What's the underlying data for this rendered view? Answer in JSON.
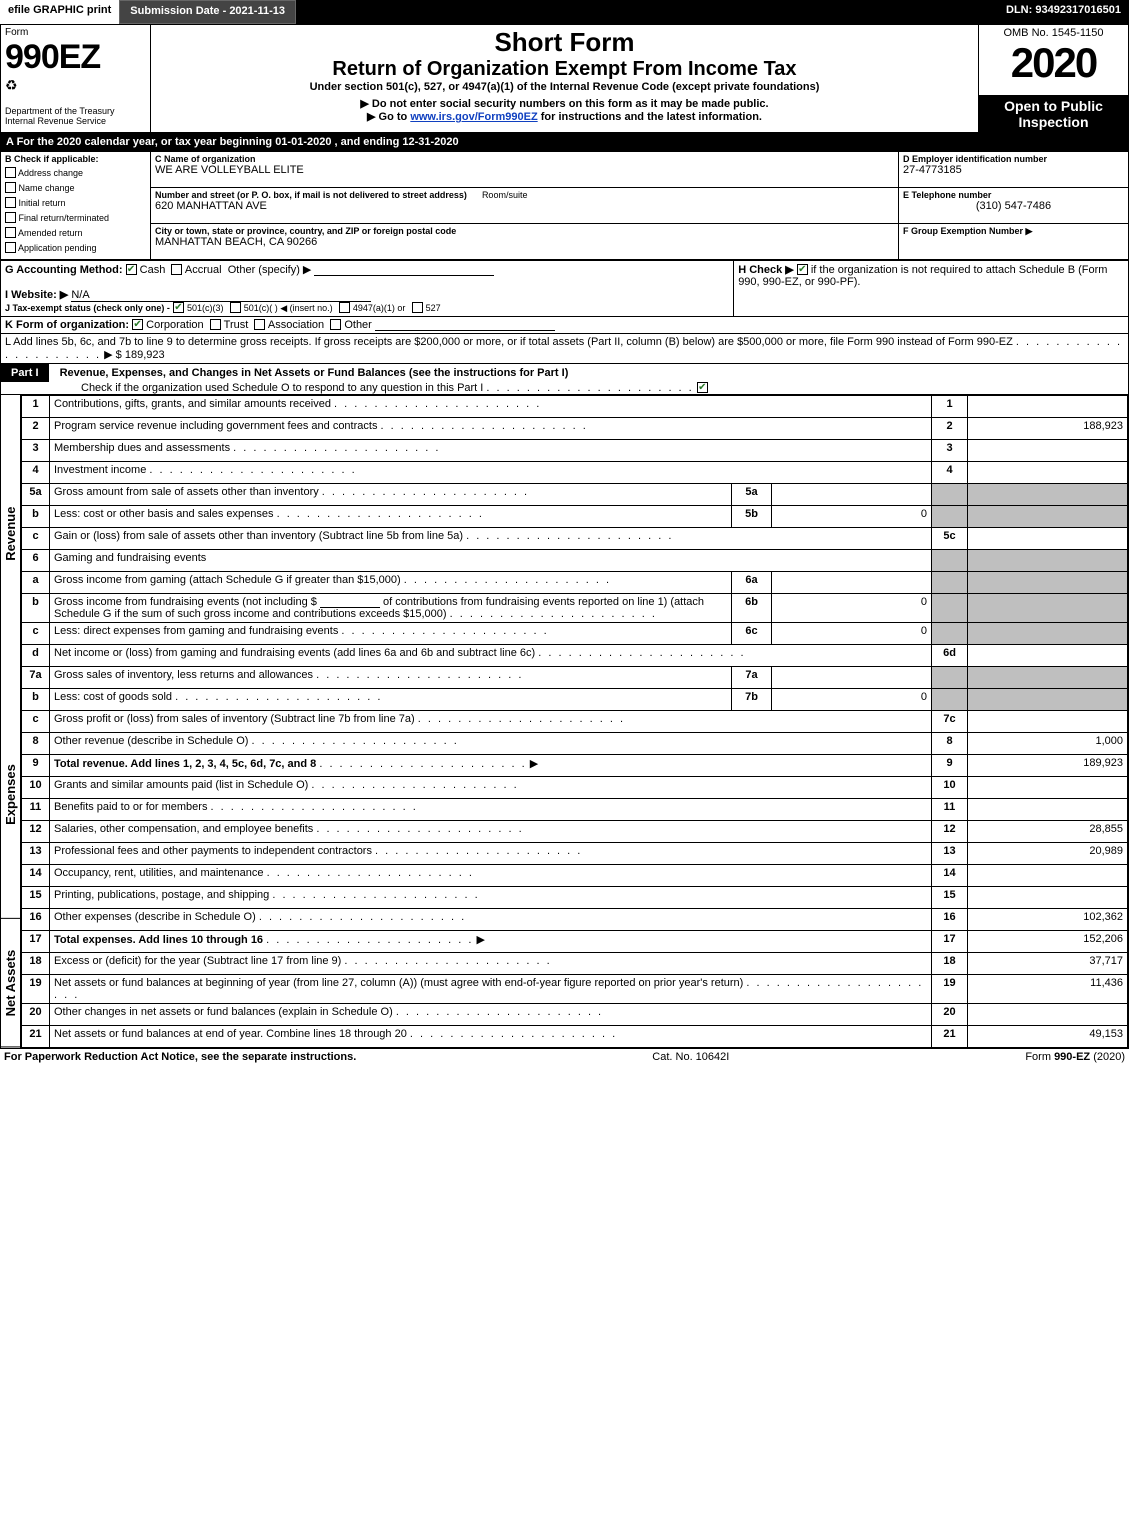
{
  "topbar": {
    "efile": "efile GRAPHIC print",
    "submission": "Submission Date - 2021-11-13",
    "dln": "DLN: 93492317016501"
  },
  "header": {
    "form_word": "Form",
    "form_number": "990EZ",
    "dept": "Department of the Treasury",
    "irs": "Internal Revenue Service",
    "short_form": "Short Form",
    "main_title": "Return of Organization Exempt From Income Tax",
    "subtitle": "Under section 501(c), 527, or 4947(a)(1) of the Internal Revenue Code (except private foundations)",
    "warn_ssn": "▶ Do not enter social security numbers on this form as it may be made public.",
    "goto": "▶ Go to www.irs.gov/Form990EZ for instructions and the latest information.",
    "goto_link": "www.irs.gov/Form990EZ",
    "omb": "OMB No. 1545-1150",
    "year": "2020",
    "open_public": "Open to Public Inspection"
  },
  "period": {
    "line": "A For the 2020 calendar year, or tax year beginning 01-01-2020 , and ending 12-31-2020"
  },
  "boxB": {
    "label": "B Check if applicable:",
    "opts": [
      {
        "label": "Address change",
        "checked": false
      },
      {
        "label": "Name change",
        "checked": false
      },
      {
        "label": "Initial return",
        "checked": false
      },
      {
        "label": "Final return/terminated",
        "checked": false
      },
      {
        "label": "Amended return",
        "checked": false
      },
      {
        "label": "Application pending",
        "checked": false
      }
    ]
  },
  "boxC": {
    "name_label": "C Name of organization",
    "name": "WE ARE VOLLEYBALL ELITE",
    "street_label": "Number and street (or P. O. box, if mail is not delivered to street address)",
    "room_label": "Room/suite",
    "street": "620 MANHATTAN AVE",
    "city_label": "City or town, state or province, country, and ZIP or foreign postal code",
    "city": "MANHATTAN BEACH, CA  90266"
  },
  "boxD": {
    "label": "D Employer identification number",
    "value": "27-4773185"
  },
  "boxE": {
    "label": "E Telephone number",
    "value": "(310) 547-7486"
  },
  "boxF": {
    "label": "F Group Exemption Number ▶",
    "value": ""
  },
  "boxG": {
    "label": "G Accounting Method:",
    "cash": "Cash",
    "cash_checked": true,
    "accrual": "Accrual",
    "accrual_checked": false,
    "other": "Other (specify) ▶"
  },
  "boxH": {
    "label": "H Check ▶",
    "text": "if the organization is not required to attach Schedule B (Form 990, 990-EZ, or 990-PF).",
    "checked": true
  },
  "boxI": {
    "label": "I Website: ▶",
    "value": "N/A"
  },
  "boxJ": {
    "label": "J Tax-exempt status (check only one) -",
    "opt1": "501(c)(3)",
    "opt1_checked": true,
    "opt2": "501(c)(  ) ◀ (insert no.)",
    "opt3": "4947(a)(1) or",
    "opt4": "527"
  },
  "boxK": {
    "label": "K Form of organization:",
    "corp": "Corporation",
    "corp_checked": true,
    "trust": "Trust",
    "assoc": "Association",
    "other": "Other"
  },
  "boxL": {
    "text": "L Add lines 5b, 6c, and 7b to line 9 to determine gross receipts. If gross receipts are $200,000 or more, or if total assets (Part II, column (B) below) are $500,000 or more, file Form 990 instead of Form 990-EZ",
    "amount_prefix": "▶ $",
    "amount": "189,923"
  },
  "part1": {
    "part_label": "Part I",
    "title": "Revenue, Expenses, and Changes in Net Assets or Fund Balances (see the instructions for Part I)",
    "check_line": "Check if the organization used Schedule O to respond to any question in this Part I",
    "check_checked": true,
    "vert_rev": "Revenue",
    "vert_exp": "Expenses",
    "vert_net": "Net Assets"
  },
  "lines": {
    "l1": {
      "n": "1",
      "d": "Contributions, gifts, grants, and similar amounts received",
      "ln": "1",
      "amt": ""
    },
    "l2": {
      "n": "2",
      "d": "Program service revenue including government fees and contracts",
      "ln": "2",
      "amt": "188,923"
    },
    "l3": {
      "n": "3",
      "d": "Membership dues and assessments",
      "ln": "3",
      "amt": ""
    },
    "l4": {
      "n": "4",
      "d": "Investment income",
      "ln": "4",
      "amt": ""
    },
    "l5a": {
      "n": "5a",
      "d": "Gross amount from sale of assets other than inventory",
      "sub": "5a",
      "subamt": ""
    },
    "l5b": {
      "n": "b",
      "d": "Less: cost or other basis and sales expenses",
      "sub": "5b",
      "subamt": "0"
    },
    "l5c": {
      "n": "c",
      "d": "Gain or (loss) from sale of assets other than inventory (Subtract line 5b from line 5a)",
      "ln": "5c",
      "amt": ""
    },
    "l6": {
      "n": "6",
      "d": "Gaming and fundraising events"
    },
    "l6a": {
      "n": "a",
      "d": "Gross income from gaming (attach Schedule G if greater than $15,000)",
      "sub": "6a",
      "subamt": ""
    },
    "l6b_pre": "Gross income from fundraising events (not including $",
    "l6b_mid": "of contributions from fundraising events reported on line 1) (attach Schedule G if the sum of such gross income and contributions exceeds $15,000)",
    "l6b": {
      "n": "b",
      "sub": "6b",
      "subamt": "0"
    },
    "l6c": {
      "n": "c",
      "d": "Less: direct expenses from gaming and fundraising events",
      "sub": "6c",
      "subamt": "0"
    },
    "l6d": {
      "n": "d",
      "d": "Net income or (loss) from gaming and fundraising events (add lines 6a and 6b and subtract line 6c)",
      "ln": "6d",
      "amt": ""
    },
    "l7a": {
      "n": "7a",
      "d": "Gross sales of inventory, less returns and allowances",
      "sub": "7a",
      "subamt": ""
    },
    "l7b": {
      "n": "b",
      "d": "Less: cost of goods sold",
      "sub": "7b",
      "subamt": "0"
    },
    "l7c": {
      "n": "c",
      "d": "Gross profit or (loss) from sales of inventory (Subtract line 7b from line 7a)",
      "ln": "7c",
      "amt": ""
    },
    "l8": {
      "n": "8",
      "d": "Other revenue (describe in Schedule O)",
      "ln": "8",
      "amt": "1,000"
    },
    "l9": {
      "n": "9",
      "d": "Total revenue. Add lines 1, 2, 3, 4, 5c, 6d, 7c, and 8",
      "arrow": "▶",
      "ln": "9",
      "amt": "189,923"
    },
    "l10": {
      "n": "10",
      "d": "Grants and similar amounts paid (list in Schedule O)",
      "ln": "10",
      "amt": ""
    },
    "l11": {
      "n": "11",
      "d": "Benefits paid to or for members",
      "ln": "11",
      "amt": ""
    },
    "l12": {
      "n": "12",
      "d": "Salaries, other compensation, and employee benefits",
      "ln": "12",
      "amt": "28,855"
    },
    "l13": {
      "n": "13",
      "d": "Professional fees and other payments to independent contractors",
      "ln": "13",
      "amt": "20,989"
    },
    "l14": {
      "n": "14",
      "d": "Occupancy, rent, utilities, and maintenance",
      "ln": "14",
      "amt": ""
    },
    "l15": {
      "n": "15",
      "d": "Printing, publications, postage, and shipping",
      "ln": "15",
      "amt": ""
    },
    "l16": {
      "n": "16",
      "d": "Other expenses (describe in Schedule O)",
      "ln": "16",
      "amt": "102,362"
    },
    "l17": {
      "n": "17",
      "d": "Total expenses. Add lines 10 through 16",
      "arrow": "▶",
      "ln": "17",
      "amt": "152,206"
    },
    "l18": {
      "n": "18",
      "d": "Excess or (deficit) for the year (Subtract line 17 from line 9)",
      "ln": "18",
      "amt": "37,717"
    },
    "l19": {
      "n": "19",
      "d": "Net assets or fund balances at beginning of year (from line 27, column (A)) (must agree with end-of-year figure reported on prior year's return)",
      "ln": "19",
      "amt": "11,436"
    },
    "l20": {
      "n": "20",
      "d": "Other changes in net assets or fund balances (explain in Schedule O)",
      "ln": "20",
      "amt": ""
    },
    "l21": {
      "n": "21",
      "d": "Net assets or fund balances at end of year. Combine lines 18 through 20",
      "ln": "21",
      "amt": "49,153"
    }
  },
  "footer": {
    "pra": "For Paperwork Reduction Act Notice, see the separate instructions.",
    "cat": "Cat. No. 10642I",
    "formref": "Form 990-EZ (2020)"
  }
}
